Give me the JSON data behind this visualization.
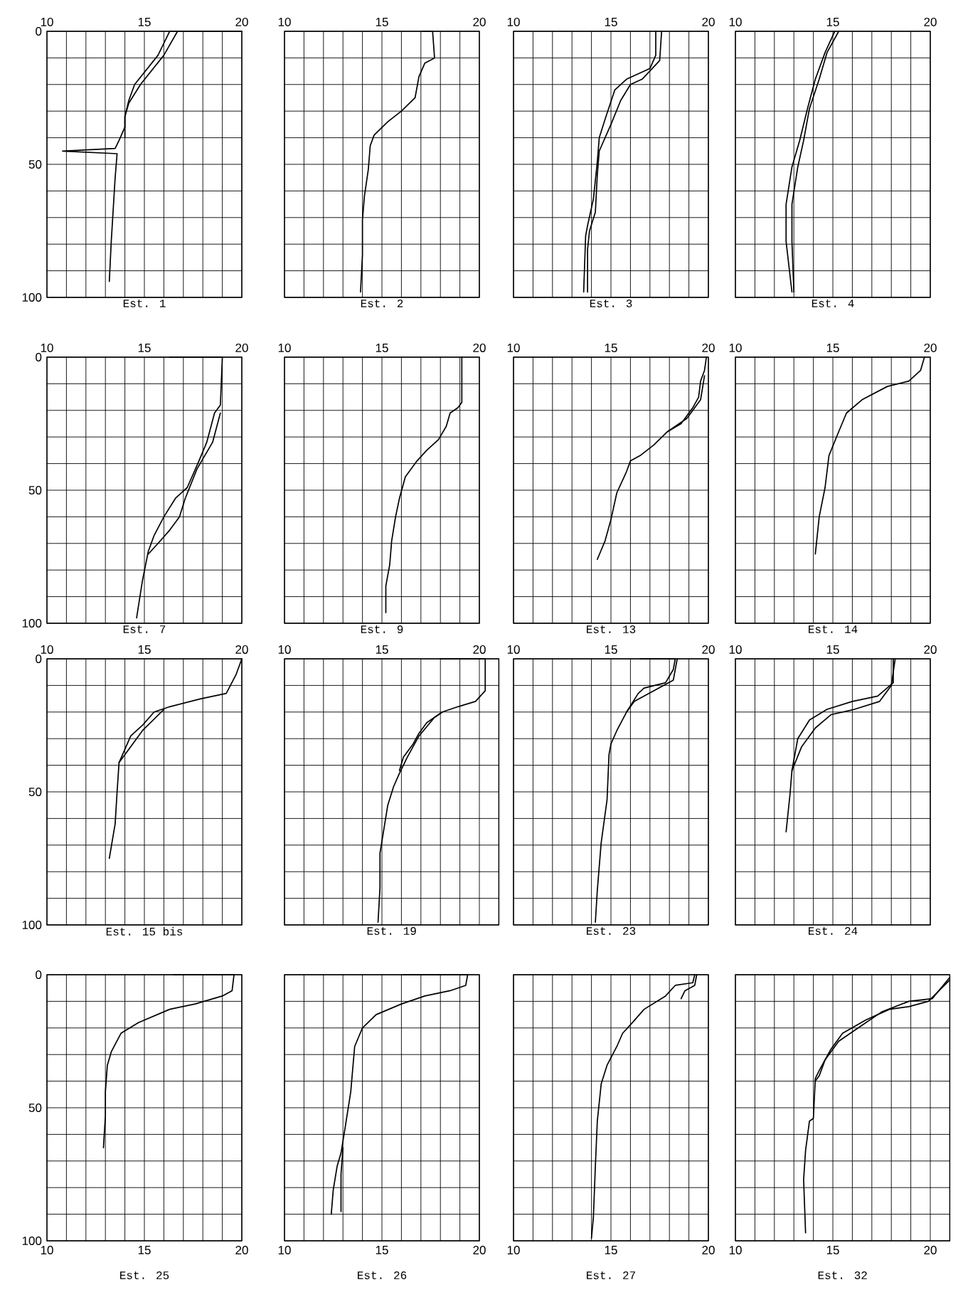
{
  "chart_data": [
    {
      "type": "line",
      "title": "Est. 1",
      "xlim": [
        10,
        20
      ],
      "ylim": [
        100,
        0
      ],
      "grid": true,
      "xticks": [
        10,
        {
          "value": 11,
          "label": null
        },
        {
          "value": 12,
          "label": null
        },
        {
          "value": 13,
          "label": null
        },
        {
          "value": 14,
          "label": null
        },
        15,
        {
          "value": 16,
          "label": null
        },
        {
          "value": 17,
          "label": null
        },
        {
          "value": 18,
          "label": null
        },
        {
          "value": 19,
          "label": null
        },
        20
      ],
      "yticks": [
        0,
        {
          "value": 10,
          "label": null
        },
        {
          "value": 20,
          "label": null
        },
        {
          "value": 30,
          "label": null
        },
        {
          "value": 40,
          "label": null
        },
        50,
        {
          "value": 60,
          "label": null
        },
        {
          "value": 70,
          "label": null
        },
        {
          "value": 80,
          "label": null
        },
        {
          "value": 90,
          "label": null
        },
        100
      ],
      "series": [
        {
          "color": "#000000",
          "x": [
            20.0,
            16.3,
            15.7,
            14.5,
            14.2,
            14.0,
            14.0,
            13.7,
            13.5,
            10.8,
            13.6,
            13.5,
            13.4,
            13.3,
            13.2
          ],
          "values": [
            0,
            0,
            9,
            20,
            26,
            32,
            36,
            41,
            44,
            45,
            46,
            55,
            67,
            79,
            94
          ]
        },
        {
          "color": "#000000",
          "x": [
            16.7,
            16.0,
            14.8,
            14.2,
            14.0,
            14.0
          ],
          "values": [
            0,
            9,
            20,
            27,
            32,
            40
          ]
        }
      ]
    },
    {
      "type": "line",
      "title": "Est. 2",
      "xlim": [
        10,
        20
      ],
      "ylim": [
        100,
        0
      ],
      "grid": true,
      "tick_labels": "x",
      "xticks": [
        10,
        {
          "value": 11,
          "label": null
        },
        {
          "value": 12,
          "label": null
        },
        {
          "value": 13,
          "label": null
        },
        {
          "value": 14,
          "label": null
        },
        15,
        {
          "value": 16,
          "label": null
        },
        {
          "value": 17,
          "label": null
        },
        {
          "value": 18,
          "label": null
        },
        {
          "value": 19,
          "label": null
        },
        20
      ],
      "yticks": [
        0,
        {
          "value": 10,
          "label": null
        },
        {
          "value": 20,
          "label": null
        },
        {
          "value": 30,
          "label": null
        },
        {
          "value": 40,
          "label": null
        },
        50,
        {
          "value": 60,
          "label": null
        },
        {
          "value": 70,
          "label": null
        },
        {
          "value": 80,
          "label": null
        },
        {
          "value": 90,
          "label": null
        },
        100
      ],
      "series": [
        {
          "color": "#000000",
          "x": [
            17.1,
            17.6,
            17.7,
            17.2,
            16.9,
            16.7,
            16.0,
            15.3,
            14.6,
            14.4,
            14.3,
            14.1,
            14.0,
            14.0,
            13.9
          ],
          "values": [
            0,
            0,
            10,
            12,
            17,
            25,
            30,
            34,
            39,
            43,
            52,
            62,
            71,
            84,
            98
          ]
        }
      ]
    },
    {
      "type": "line",
      "title": "Est. 3",
      "xlim": [
        10,
        20
      ],
      "ylim": [
        100,
        0
      ],
      "grid": true,
      "tick_labels": "x",
      "xticks": [
        10,
        {
          "value": 11,
          "label": null
        },
        {
          "value": 12,
          "label": null
        },
        {
          "value": 13,
          "label": null
        },
        {
          "value": 14,
          "label": null
        },
        15,
        {
          "value": 16,
          "label": null
        },
        {
          "value": 17,
          "label": null
        },
        {
          "value": 18,
          "label": null
        },
        {
          "value": 19,
          "label": null
        },
        20
      ],
      "yticks": [
        0,
        {
          "value": 10,
          "label": null
        },
        {
          "value": 20,
          "label": null
        },
        {
          "value": 30,
          "label": null
        },
        {
          "value": 40,
          "label": null
        },
        50,
        {
          "value": 60,
          "label": null
        },
        {
          "value": 70,
          "label": null
        },
        {
          "value": 80,
          "label": null
        },
        {
          "value": 90,
          "label": null
        },
        100
      ],
      "series": [
        {
          "color": "#000000",
          "x": [
            17.3,
            17.3,
            17.0,
            15.8,
            15.2,
            14.7,
            14.4,
            14.3,
            14.1,
            13.8,
            13.7,
            13.6
          ],
          "values": [
            0,
            9,
            14,
            18,
            22,
            33,
            40,
            49,
            63,
            73,
            77,
            98
          ]
        },
        {
          "color": "#000000",
          "x": [
            17.6,
            17.5,
            16.6,
            16.0,
            15.5,
            15.0,
            14.4,
            14.3,
            14.2,
            13.9,
            13.8,
            13.8
          ],
          "values": [
            0,
            11,
            18,
            20,
            26,
            35,
            45,
            54,
            68,
            75,
            82,
            98
          ]
        }
      ]
    },
    {
      "type": "line",
      "title": "Est. 4",
      "xlim": [
        10,
        20
      ],
      "ylim": [
        100,
        0
      ],
      "grid": true,
      "tick_labels": "x",
      "xticks": [
        10,
        {
          "value": 11,
          "label": null
        },
        {
          "value": 12,
          "label": null
        },
        {
          "value": 13,
          "label": null
        },
        {
          "value": 14,
          "label": null
        },
        15,
        {
          "value": 16,
          "label": null
        },
        {
          "value": 17,
          "label": null
        },
        {
          "value": 18,
          "label": null
        },
        {
          "value": 19,
          "label": null
        },
        20
      ],
      "yticks": [
        0,
        {
          "value": 10,
          "label": null
        },
        {
          "value": 20,
          "label": null
        },
        {
          "value": 30,
          "label": null
        },
        {
          "value": 40,
          "label": null
        },
        50,
        {
          "value": 60,
          "label": null
        },
        {
          "value": 70,
          "label": null
        },
        {
          "value": 80,
          "label": null
        },
        {
          "value": 90,
          "label": null
        },
        100
      ],
      "series": [
        {
          "color": "#000000",
          "x": [
            15.3,
            14.7,
            14.3,
            13.8,
            13.5,
            13.2,
            12.9,
            12.9,
            13.0
          ],
          "values": [
            0,
            8,
            18,
            29,
            41,
            51,
            65,
            79,
            98
          ]
        },
        {
          "color": "#000000",
          "x": [
            15.1,
            14.6,
            14.1,
            13.7,
            13.3,
            12.9,
            12.6,
            12.6,
            12.9
          ],
          "values": [
            0,
            8,
            18,
            29,
            41,
            51,
            65,
            79,
            98
          ]
        }
      ]
    },
    {
      "type": "line",
      "title": "Est. 7",
      "xlim": [
        10,
        20
      ],
      "ylim": [
        100,
        0
      ],
      "grid": true,
      "xticks": [
        10,
        {
          "value": 11,
          "label": null
        },
        {
          "value": 12,
          "label": null
        },
        {
          "value": 13,
          "label": null
        },
        {
          "value": 14,
          "label": null
        },
        15,
        {
          "value": 16,
          "label": null
        },
        {
          "value": 17,
          "label": null
        },
        {
          "value": 18,
          "label": null
        },
        {
          "value": 19,
          "label": null
        },
        20
      ],
      "yticks": [
        0,
        {
          "value": 10,
          "label": null
        },
        {
          "value": 20,
          "label": null
        },
        {
          "value": 30,
          "label": null
        },
        {
          "value": 40,
          "label": null
        },
        50,
        {
          "value": 60,
          "label": null
        },
        {
          "value": 70,
          "label": null
        },
        {
          "value": 80,
          "label": null
        },
        {
          "value": 90,
          "label": null
        },
        100
      ],
      "series": [
        {
          "color": "#000000",
          "x": [
            16.3,
            19.0,
            18.9,
            18.6,
            18.2,
            17.8,
            17.2,
            16.6,
            16.0,
            15.5,
            15.2,
            14.9,
            14.6
          ],
          "values": [
            0,
            0,
            18,
            21,
            32,
            39,
            49,
            53,
            60,
            67,
            73,
            84,
            98
          ]
        },
        {
          "color": "#000000",
          "x": [
            18.9,
            18.5,
            17.7,
            17.1,
            16.8,
            16.3,
            15.7,
            15.2
          ],
          "values": [
            21,
            32,
            42,
            53,
            60,
            65,
            70,
            74
          ]
        }
      ]
    },
    {
      "type": "line",
      "title": "Est. 9",
      "xlim": [
        10,
        20
      ],
      "ylim": [
        100,
        0
      ],
      "grid": true,
      "tick_labels": "x",
      "xticks": [
        10,
        {
          "value": 11,
          "label": null
        },
        {
          "value": 12,
          "label": null
        },
        {
          "value": 13,
          "label": null
        },
        {
          "value": 14,
          "label": null
        },
        15,
        {
          "value": 16,
          "label": null
        },
        {
          "value": 17,
          "label": null
        },
        {
          "value": 18,
          "label": null
        },
        {
          "value": 19,
          "label": null
        },
        20
      ],
      "yticks": [
        0,
        {
          "value": 10,
          "label": null
        },
        {
          "value": 20,
          "label": null
        },
        {
          "value": 30,
          "label": null
        },
        {
          "value": 40,
          "label": null
        },
        50,
        {
          "value": 60,
          "label": null
        },
        {
          "value": 70,
          "label": null
        },
        {
          "value": 80,
          "label": null
        },
        {
          "value": 90,
          "label": null
        },
        100
      ],
      "series": [
        {
          "color": "#000000",
          "x": [
            19.1,
            19.1,
            18.9,
            18.5,
            18.3,
            17.9,
            17.3,
            16.8,
            16.2,
            15.9,
            15.7,
            15.5,
            15.4,
            15.2,
            15.2
          ],
          "values": [
            0,
            17,
            19,
            21,
            26,
            31,
            35,
            39,
            45,
            53,
            60,
            69,
            78,
            86,
            96
          ]
        }
      ]
    },
    {
      "type": "line",
      "title": "Est. 13",
      "xlim": [
        10,
        20
      ],
      "ylim": [
        100,
        0
      ],
      "grid": true,
      "tick_labels": "x",
      "xticks": [
        10,
        {
          "value": 11,
          "label": null
        },
        {
          "value": 12,
          "label": null
        },
        {
          "value": 13,
          "label": null
        },
        {
          "value": 14,
          "label": null
        },
        15,
        {
          "value": 16,
          "label": null
        },
        {
          "value": 17,
          "label": null
        },
        {
          "value": 18,
          "label": null
        },
        {
          "value": 19,
          "label": null
        },
        20
      ],
      "yticks": [
        0,
        {
          "value": 10,
          "label": null
        },
        {
          "value": 20,
          "label": null
        },
        {
          "value": 30,
          "label": null
        },
        {
          "value": 40,
          "label": null
        },
        50,
        {
          "value": 60,
          "label": null
        },
        {
          "value": 70,
          "label": null
        },
        {
          "value": 80,
          "label": null
        },
        {
          "value": 90,
          "label": null
        },
        100
      ],
      "series": [
        {
          "color": "#000000",
          "x": [
            19.9,
            19.8,
            19.6,
            19.5,
            19.2,
            18.6,
            17.9,
            17.2,
            16.5,
            16.0,
            15.8,
            15.3,
            15.0,
            14.7,
            14.3
          ],
          "values": [
            0,
            5,
            9,
            15,
            19,
            25,
            28,
            33,
            37,
            39,
            43,
            51,
            61,
            69,
            76
          ]
        },
        {
          "color": "#000000",
          "x": [
            19.8,
            19.6,
            19.3,
            18.9,
            18.3,
            17.9
          ],
          "values": [
            7,
            16,
            19,
            23,
            26,
            28
          ]
        }
      ]
    },
    {
      "type": "line",
      "title": "Est. 14",
      "xlim": [
        10,
        20
      ],
      "ylim": [
        100,
        0
      ],
      "grid": true,
      "tick_labels": "x",
      "xticks": [
        10,
        {
          "value": 11,
          "label": null
        },
        {
          "value": 12,
          "label": null
        },
        {
          "value": 13,
          "label": null
        },
        {
          "value": 14,
          "label": null
        },
        15,
        {
          "value": 16,
          "label": null
        },
        {
          "value": 17,
          "label": null
        },
        {
          "value": 18,
          "label": null
        },
        {
          "value": 19,
          "label": null
        },
        20
      ],
      "yticks": [
        0,
        {
          "value": 10,
          "label": null
        },
        {
          "value": 20,
          "label": null
        },
        {
          "value": 30,
          "label": null
        },
        {
          "value": 40,
          "label": null
        },
        50,
        {
          "value": 60,
          "label": null
        },
        {
          "value": 70,
          "label": null
        },
        {
          "value": 80,
          "label": null
        },
        {
          "value": 90,
          "label": null
        },
        100
      ],
      "series": [
        {
          "color": "#000000",
          "x": [
            19.7,
            19.5,
            18.9,
            17.8,
            16.5,
            15.7,
            15.3,
            14.8,
            14.6,
            14.3,
            14.1
          ],
          "values": [
            0,
            5,
            9,
            11,
            16,
            21,
            28,
            37,
            49,
            60,
            74
          ]
        }
      ]
    },
    {
      "type": "line",
      "title": "Est. 15 bis",
      "xlim": [
        10,
        20
      ],
      "ylim": [
        100,
        0
      ],
      "grid": true,
      "xticks": [
        10,
        {
          "value": 11,
          "label": null
        },
        {
          "value": 12,
          "label": null
        },
        {
          "value": 13,
          "label": null
        },
        {
          "value": 14,
          "label": null
        },
        15,
        {
          "value": 16,
          "label": null
        },
        {
          "value": 17,
          "label": null
        },
        {
          "value": 18,
          "label": null
        },
        {
          "value": 19,
          "label": null
        },
        20
      ],
      "yticks": [
        0,
        {
          "value": 10,
          "label": null
        },
        {
          "value": 20,
          "label": null
        },
        {
          "value": 30,
          "label": null
        },
        {
          "value": 40,
          "label": null
        },
        50,
        {
          "value": 60,
          "label": null
        },
        {
          "value": 70,
          "label": null
        },
        {
          "value": 80,
          "label": null
        },
        {
          "value": 90,
          "label": null
        },
        100
      ],
      "series": [
        {
          "color": "#000000",
          "x": [
            20.0,
            19.7,
            19.2,
            17.9,
            16.3,
            15.5,
            14.9,
            14.3,
            13.7,
            13.6,
            13.5,
            13.2
          ],
          "values": [
            0,
            6,
            13,
            15,
            18,
            20,
            25,
            29,
            39,
            50,
            62,
            75
          ]
        },
        {
          "color": "#000000",
          "x": [
            16.0,
            14.9,
            14.2,
            13.7
          ],
          "values": [
            19,
            27,
            34,
            39
          ]
        }
      ]
    },
    {
      "type": "line",
      "title": "Est. 19",
      "xlim": [
        10,
        21
      ],
      "ylim": [
        100,
        0
      ],
      "grid": true,
      "tick_labels": "x",
      "xticks": [
        10,
        {
          "value": 11,
          "label": null
        },
        {
          "value": 12,
          "label": null
        },
        {
          "value": 13,
          "label": null
        },
        {
          "value": 14,
          "label": null
        },
        15,
        {
          "value": 16,
          "label": null
        },
        {
          "value": 17,
          "label": null
        },
        {
          "value": 18,
          "label": null
        },
        {
          "value": 19,
          "label": null
        },
        20,
        {
          "value": 21,
          "label": null
        }
      ],
      "yticks": [
        0,
        {
          "value": 10,
          "label": null
        },
        {
          "value": 20,
          "label": null
        },
        {
          "value": 30,
          "label": null
        },
        {
          "value": 40,
          "label": null
        },
        50,
        {
          "value": 60,
          "label": null
        },
        {
          "value": 70,
          "label": null
        },
        {
          "value": 80,
          "label": null
        },
        {
          "value": 90,
          "label": null
        },
        100
      ],
      "series": [
        {
          "color": "#000000",
          "x": [
            18.0,
            20.3,
            20.3,
            19.8,
            18.9,
            18.1,
            17.7,
            16.9,
            16.3,
            15.9,
            15.6,
            15.3,
            15.1,
            14.9,
            14.9,
            14.8
          ],
          "values": [
            0,
            0,
            12,
            16,
            18,
            20,
            22,
            29,
            37,
            43,
            48,
            55,
            64,
            73,
            86,
            99
          ]
        },
        {
          "color": "#000000",
          "x": [
            18.1,
            17.3,
            16.9,
            16.6,
            16.1,
            15.9
          ],
          "values": [
            20,
            24,
            28,
            32,
            37,
            42
          ]
        }
      ]
    },
    {
      "type": "line",
      "title": "Est. 23",
      "xlim": [
        10,
        20
      ],
      "ylim": [
        100,
        0
      ],
      "grid": true,
      "tick_labels": "x",
      "xticks": [
        10,
        {
          "value": 11,
          "label": null
        },
        {
          "value": 12,
          "label": null
        },
        {
          "value": 13,
          "label": null
        },
        {
          "value": 14,
          "label": null
        },
        15,
        {
          "value": 16,
          "label": null
        },
        {
          "value": 17,
          "label": null
        },
        {
          "value": 18,
          "label": null
        },
        {
          "value": 19,
          "label": null
        },
        20
      ],
      "yticks": [
        0,
        {
          "value": 10,
          "label": null
        },
        {
          "value": 20,
          "label": null
        },
        {
          "value": 30,
          "label": null
        },
        {
          "value": 40,
          "label": null
        },
        50,
        {
          "value": 60,
          "label": null
        },
        {
          "value": 70,
          "label": null
        },
        {
          "value": 80,
          "label": null
        },
        {
          "value": 90,
          "label": null
        },
        100
      ],
      "series": [
        {
          "color": "#000000",
          "x": [
            16.5,
            18.3,
            18.2,
            17.8,
            16.7,
            16.4,
            15.8,
            15.3,
            15.0,
            14.9,
            14.8,
            14.5,
            14.3,
            14.2
          ],
          "values": [
            0,
            0,
            4,
            9,
            11,
            13,
            20,
            27,
            32,
            36,
            53,
            69,
            87,
            99
          ]
        },
        {
          "color": "#000000",
          "x": [
            18.4,
            18.2,
            17.2,
            16.2,
            15.8
          ],
          "values": [
            0,
            8,
            12,
            16,
            20
          ]
        }
      ]
    },
    {
      "type": "line",
      "title": "Est. 24",
      "xlim": [
        10,
        20
      ],
      "ylim": [
        100,
        0
      ],
      "grid": true,
      "tick_labels": "x",
      "xticks": [
        10,
        {
          "value": 11,
          "label": null
        },
        {
          "value": 12,
          "label": null
        },
        {
          "value": 13,
          "label": null
        },
        {
          "value": 14,
          "label": null
        },
        15,
        {
          "value": 16,
          "label": null
        },
        {
          "value": 17,
          "label": null
        },
        {
          "value": 18,
          "label": null
        },
        {
          "value": 19,
          "label": null
        },
        20
      ],
      "yticks": [
        0,
        {
          "value": 10,
          "label": null
        },
        {
          "value": 20,
          "label": null
        },
        {
          "value": 30,
          "label": null
        },
        {
          "value": 40,
          "label": null
        },
        50,
        {
          "value": 60,
          "label": null
        },
        {
          "value": 70,
          "label": null
        },
        {
          "value": 80,
          "label": null
        },
        {
          "value": 90,
          "label": null
        },
        100
      ],
      "series": [
        {
          "color": "#000000",
          "x": [
            18.1,
            18.1,
            17.3,
            16.0,
            14.7,
            13.8,
            13.2,
            12.9,
            12.8,
            12.6
          ],
          "values": [
            0,
            9,
            14,
            16,
            19,
            23,
            30,
            42,
            51,
            65
          ]
        },
        {
          "color": "#000000",
          "x": [
            18.2,
            18.0,
            17.4,
            16.1,
            14.9,
            14.1,
            13.4,
            12.9
          ],
          "values": [
            0,
            10,
            16,
            19,
            21,
            26,
            33,
            42
          ]
        }
      ]
    },
    {
      "type": "line",
      "title": "Est. 25",
      "xlim": [
        10,
        20
      ],
      "ylim": [
        100,
        0
      ],
      "grid": true,
      "xticks": [
        10,
        {
          "value": 11,
          "label": null
        },
        {
          "value": 12,
          "label": null
        },
        {
          "value": 13,
          "label": null
        },
        {
          "value": 14,
          "label": null
        },
        15,
        {
          "value": 16,
          "label": null
        },
        {
          "value": 17,
          "label": null
        },
        {
          "value": 18,
          "label": null
        },
        {
          "value": 19,
          "label": null
        },
        20
      ],
      "yticks": [
        0,
        {
          "value": 10,
          "label": null
        },
        {
          "value": 20,
          "label": null
        },
        {
          "value": 30,
          "label": null
        },
        {
          "value": 40,
          "label": null
        },
        50,
        {
          "value": 60,
          "label": null
        },
        {
          "value": 70,
          "label": null
        },
        {
          "value": 80,
          "label": null
        },
        {
          "value": 90,
          "label": null
        },
        100
      ],
      "series": [
        {
          "color": "#000000",
          "x": [
            16.5,
            19.6,
            19.5,
            19.0,
            17.6,
            16.3,
            14.7,
            13.8,
            13.3,
            13.1,
            13.0,
            13.0,
            12.9
          ],
          "values": [
            0,
            0,
            6,
            8,
            11,
            13,
            18,
            22,
            29,
            34,
            44,
            53,
            65
          ]
        }
      ]
    },
    {
      "type": "line",
      "title": "Est. 26",
      "xlim": [
        10,
        20
      ],
      "ylim": [
        100,
        0
      ],
      "grid": true,
      "tick_labels": "x",
      "xticks": [
        10,
        {
          "value": 11,
          "label": null
        },
        {
          "value": 12,
          "label": null
        },
        {
          "value": 13,
          "label": null
        },
        {
          "value": 14,
          "label": null
        },
        15,
        {
          "value": 16,
          "label": null
        },
        {
          "value": 17,
          "label": null
        },
        {
          "value": 18,
          "label": null
        },
        {
          "value": 19,
          "label": null
        },
        20
      ],
      "yticks": [
        0,
        {
          "value": 10,
          "label": null
        },
        {
          "value": 20,
          "label": null
        },
        {
          "value": 30,
          "label": null
        },
        {
          "value": 40,
          "label": null
        },
        50,
        {
          "value": 60,
          "label": null
        },
        {
          "value": 70,
          "label": null
        },
        {
          "value": 80,
          "label": null
        },
        {
          "value": 90,
          "label": null
        },
        100
      ],
      "series": [
        {
          "color": "#000000",
          "x": [
            16.1,
            19.4,
            19.3,
            18.5,
            17.2,
            16.0,
            14.7,
            14.0,
            13.6,
            13.4,
            13.1,
            12.9,
            12.7,
            12.5,
            12.4
          ],
          "values": [
            0,
            0,
            4,
            6,
            8,
            11,
            15,
            20,
            27,
            44,
            58,
            67,
            72,
            81,
            90
          ]
        },
        {
          "color": "#000000",
          "x": [
            13.0,
            12.9,
            12.9
          ],
          "values": [
            65,
            75,
            89
          ]
        }
      ]
    },
    {
      "type": "line",
      "title": "Est. 27",
      "xlim": [
        10,
        20
      ],
      "ylim": [
        100,
        0
      ],
      "grid": true,
      "tick_labels": "x",
      "xticks": [
        10,
        {
          "value": 11,
          "label": null
        },
        {
          "value": 12,
          "label": null
        },
        {
          "value": 13,
          "label": null
        },
        {
          "value": 14,
          "label": null
        },
        15,
        {
          "value": 16,
          "label": null
        },
        {
          "value": 17,
          "label": null
        },
        {
          "value": 18,
          "label": null
        },
        {
          "value": 19,
          "label": null
        },
        20
      ],
      "yticks": [
        0,
        {
          "value": 10,
          "label": null
        },
        {
          "value": 20,
          "label": null
        },
        {
          "value": 30,
          "label": null
        },
        {
          "value": 40,
          "label": null
        },
        50,
        {
          "value": 60,
          "label": null
        },
        {
          "value": 70,
          "label": null
        },
        {
          "value": 80,
          "label": null
        },
        {
          "value": 90,
          "label": null
        },
        100
      ],
      "series": [
        {
          "color": "#000000",
          "x": [
            19.3,
            19.2,
            18.3,
            17.8,
            16.7,
            16.1,
            15.6,
            15.3,
            14.8,
            14.5,
            14.3,
            14.2,
            14.1,
            14.0
          ],
          "values": [
            0,
            3,
            4,
            8,
            13,
            18,
            22,
            27,
            34,
            41,
            55,
            72,
            91,
            99
          ]
        },
        {
          "color": "#000000",
          "x": [
            19.4,
            19.3,
            18.8,
            18.6
          ],
          "values": [
            0,
            4,
            6,
            9
          ]
        }
      ]
    },
    {
      "type": "line",
      "title": "Est. 32",
      "xlim": [
        10,
        21
      ],
      "ylim": [
        100,
        0
      ],
      "grid": true,
      "tick_labels": "x",
      "xticks": [
        10,
        {
          "value": 11,
          "label": null
        },
        {
          "value": 12,
          "label": null
        },
        {
          "value": 13,
          "label": null
        },
        {
          "value": 14,
          "label": null
        },
        15,
        {
          "value": 16,
          "label": null
        },
        {
          "value": 17,
          "label": null
        },
        {
          "value": 18,
          "label": null
        },
        {
          "value": 19,
          "label": null
        },
        20,
        {
          "value": 21,
          "label": null
        }
      ],
      "yticks": [
        0,
        {
          "value": 10,
          "label": null
        },
        {
          "value": 20,
          "label": null
        },
        {
          "value": 30,
          "label": null
        },
        {
          "value": 40,
          "label": null
        },
        50,
        {
          "value": 60,
          "label": null
        },
        {
          "value": 70,
          "label": null
        },
        {
          "value": 80,
          "label": null
        },
        {
          "value": 90,
          "label": null
        },
        100
      ],
      "series": [
        {
          "color": "#000000",
          "x": [
            21.0,
            19.9,
            18.9,
            17.9,
            16.7,
            15.5,
            14.9,
            14.3,
            14.1,
            14.0,
            13.8,
            13.6,
            13.5,
            13.6
          ],
          "values": [
            2,
            10,
            12,
            13,
            17,
            22,
            28,
            36,
            39,
            54,
            55,
            66,
            77,
            97
          ]
        },
        {
          "color": "#000000",
          "x": [
            21.0,
            20.1,
            18.9,
            17.5,
            16.5,
            15.3,
            14.6,
            14.3,
            14.1
          ],
          "values": [
            1,
            9,
            10,
            14,
            19,
            25,
            32,
            38,
            40
          ]
        }
      ]
    }
  ]
}
